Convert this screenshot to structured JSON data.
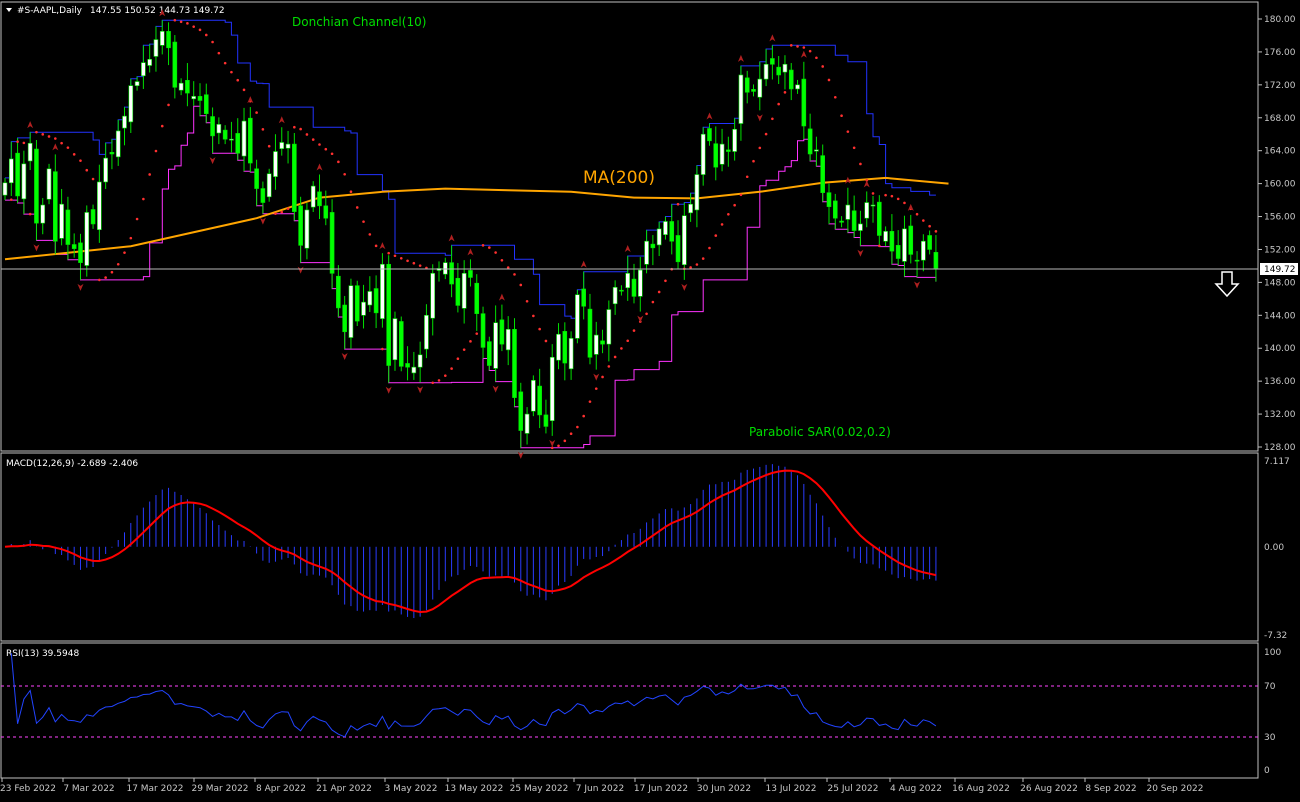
{
  "chart_data": {
    "type": "candlestick",
    "symbol_header": "#S-AAPL,Daily",
    "ohlc_header": "147.55 150.52 144.73 149.72",
    "current_price_label": "149.72",
    "signal": "down-arrow",
    "price_axis": {
      "min": 128,
      "max": 180,
      "ticks": [
        "180.00",
        "176.00",
        "172.00",
        "168.00",
        "164.00",
        "160.00",
        "156.00",
        "152.00",
        "148.00",
        "144.00",
        "140.00",
        "136.00",
        "132.00",
        "128.00"
      ]
    },
    "x_labels": [
      "23 Feb 2022",
      "7 Mar 2022",
      "17 Mar 2022",
      "29 Mar 2022",
      "8 Apr 2022",
      "21 Apr 2022",
      "3 May 2022",
      "13 May 2022",
      "25 May 2022",
      "7 Jun 2022",
      "17 Jun 2022",
      "30 Jun 2022",
      "13 Jul 2022",
      "25 Jul 2022",
      "4 Aug 2022",
      "16 Aug 2022",
      "26 Aug 2022",
      "8 Sep 2022",
      "20 Sep 2022"
    ],
    "indicators": {
      "donchian_label": "Donchian Channel(10)",
      "ma_label": "MA(200)",
      "sar_label": "Parabolic SAR(0.02,0.2)"
    },
    "close": [
      160.1,
      163.0,
      158.5,
      162.4,
      164.9,
      155.2,
      157.4,
      161.8,
      153.0,
      157.5,
      152.6,
      152.1,
      150.4,
      156.5,
      155.1,
      160.2,
      163.1,
      163.6,
      166.4,
      168.2,
      171.9,
      172.4,
      174.7,
      175.1,
      177.5,
      178.5,
      176.5,
      171.7,
      172.2,
      171.0,
      170.6,
      170.1,
      168.5,
      165.8,
      167.2,
      165.4,
      165.4,
      163.7,
      167.6,
      162.5,
      159.4,
      157.7,
      161.2,
      163.9,
      165.0,
      164.8,
      156.6,
      152.5,
      156.8,
      159.7,
      157.3,
      155.8,
      149.1,
      144.9,
      142.0,
      147.6,
      143.3,
      145.6,
      146.9,
      144.3,
      150.2,
      137.9,
      143.6,
      137.8,
      137.7,
      137.7,
      139.2,
      144.0,
      149.1,
      149.7,
      150.4,
      147.8,
      145.2,
      149.1,
      148.6,
      144.2,
      140.1,
      137.9,
      143.1,
      140.5,
      142.3,
      134.0,
      130.0,
      132.0,
      136.1,
      131.9,
      130.5,
      138.9,
      141.7,
      138.2,
      141.2,
      146.5,
      145.1,
      138.9,
      141.6,
      140.5,
      144.7,
      147.4,
      147.0,
      149.1,
      146.3,
      149.5,
      153.0,
      152.2,
      154.5,
      155.4,
      153.0,
      150.5,
      156.1,
      157.5,
      161.1,
      166.0,
      165.2,
      162.0,
      164.8,
      163.9,
      166.6,
      173.2,
      171.1,
      171.2,
      172.7,
      174.5,
      174.5,
      173.2,
      174.5,
      171.5,
      172.0,
      167.0,
      163.6,
      164.1,
      158.9,
      157.2,
      155.8,
      155.3,
      157.4,
      154.3,
      155.1,
      157.7,
      157.4,
      153.7,
      154.2,
      151.8,
      150.9,
      154.5,
      151.4,
      150.7,
      153.0,
      152.0,
      149.7
    ],
    "ma200_points": [
      [
        0,
        150.8
      ],
      [
        20,
        152.4
      ],
      [
        40,
        155.8
      ],
      [
        50,
        158.3
      ],
      [
        60,
        159.0
      ],
      [
        70,
        159.4
      ],
      [
        80,
        159.2
      ],
      [
        90,
        159.0
      ],
      [
        100,
        158.3
      ],
      [
        110,
        158.2
      ],
      [
        120,
        159.0
      ],
      [
        130,
        160.1
      ],
      [
        140,
        160.7
      ],
      [
        150,
        160.0
      ]
    ],
    "macd_header": "MACD(12,26,9) -2.689 -2.406",
    "macd_axis": {
      "min": -7.32,
      "max": 7.117,
      "ticks": [
        "7.117",
        "0.00",
        "-7.32"
      ]
    },
    "rsi_header": "RSI(13) 39.5948",
    "rsi_axis": {
      "min": 0,
      "max": 100,
      "ticks": [
        "100",
        "70",
        "30",
        "0"
      ],
      "levels": [
        30,
        70
      ]
    },
    "colors": {
      "bull": "#ffffff",
      "bear": "#00ff00",
      "candle_edge": "#00e000",
      "donchian_upper": "#2233ff",
      "donchian_lower": "#ff33ff",
      "ma": "#ffa500",
      "sar": "#ff3030",
      "macd_hist": "#2a3cff",
      "macd_signal": "#ff0000",
      "rsi": "#2244ff",
      "label_green": "#00dd00",
      "label_orange": "#ffa500"
    }
  }
}
